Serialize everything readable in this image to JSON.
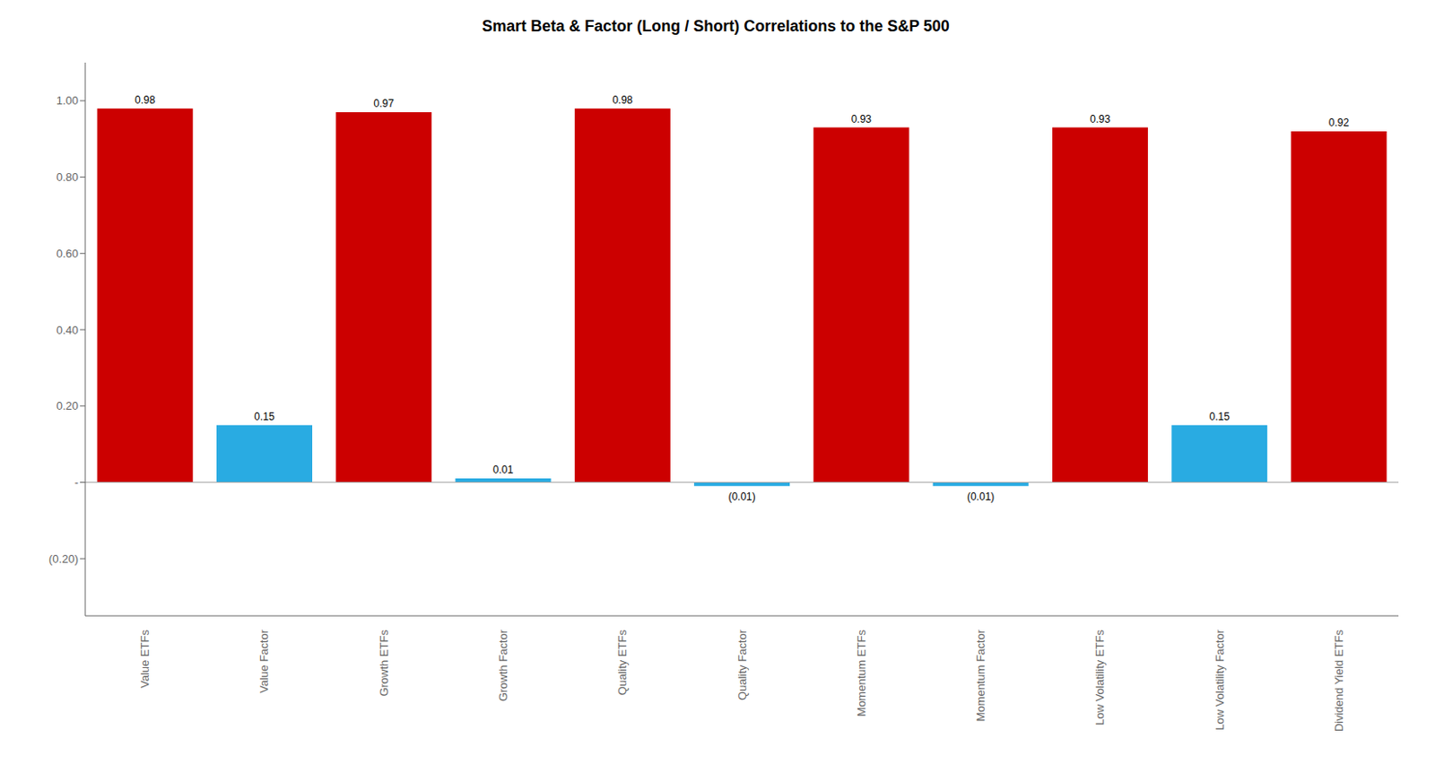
{
  "chart_data": {
    "type": "bar",
    "title": "Smart Beta & Factor (Long / Short) Correlations to the S&P 500",
    "categories": [
      "Value ETFs",
      "Value Factor",
      "Growth ETFs",
      "Growth Factor",
      "Quality ETFs",
      "Quality Factor",
      "Momentum ETFs",
      "Momentum Factor",
      "Low Volatility ETFs",
      "Low Volatility Factor",
      "Dividend Yield ETFs"
    ],
    "values": [
      0.98,
      0.15,
      0.97,
      0.01,
      0.98,
      -0.01,
      0.93,
      -0.01,
      0.93,
      0.15,
      0.92
    ],
    "value_labels": [
      "0.98",
      "0.15",
      "0.97",
      "0.01",
      "0.98",
      "(0.01)",
      "0.93",
      "(0.01)",
      "0.93",
      "0.15",
      "0.92"
    ],
    "data_labels": true,
    "colors": [
      "#cc0000",
      "#29abe2",
      "#cc0000",
      "#29abe2",
      "#cc0000",
      "#29abe2",
      "#cc0000",
      "#29abe2",
      "#cc0000",
      "#29abe2",
      "#cc0000"
    ],
    "ylim": [
      -0.35,
      1.1
    ],
    "yticks": [
      {
        "value": -0.2,
        "label": "(0.20)"
      },
      {
        "value": 0,
        "label": "-"
      },
      {
        "value": 0.2,
        "label": "0.20"
      },
      {
        "value": 0.4,
        "label": "0.40"
      },
      {
        "value": 0.6,
        "label": "0.60"
      },
      {
        "value": 0.8,
        "label": "0.80"
      },
      {
        "value": 1.0,
        "label": "1.00"
      }
    ],
    "grid": false
  }
}
